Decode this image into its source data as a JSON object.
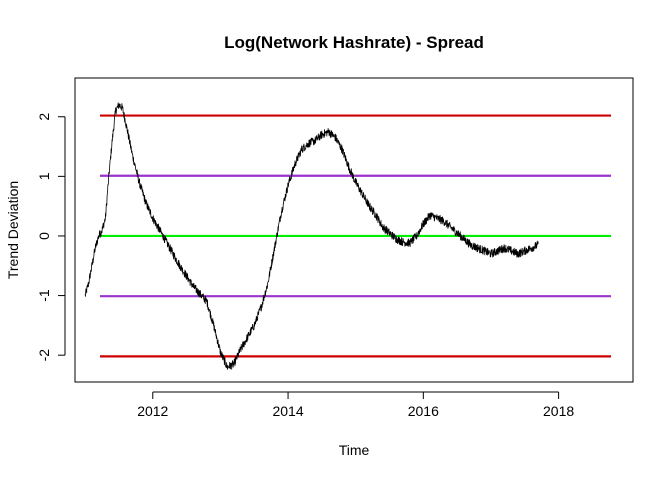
{
  "chart_data": {
    "type": "line",
    "title": "Log(Network Hashrate) - Spread",
    "xlabel": "Time",
    "ylabel": "Trend Deviation",
    "xlim": [
      2010.85,
      2019.1
    ],
    "ylim": [
      -2.45,
      2.65
    ],
    "x_ticks": [
      {
        "value": 2012,
        "label": "2012"
      },
      {
        "value": 2014,
        "label": "2014"
      },
      {
        "value": 2016,
        "label": "2016"
      },
      {
        "value": 2018,
        "label": "2018"
      }
    ],
    "y_ticks": [
      {
        "value": -2,
        "label": "-2"
      },
      {
        "value": -1,
        "label": "-1"
      },
      {
        "value": 0,
        "label": "0"
      },
      {
        "value": 1,
        "label": "1"
      },
      {
        "value": 2,
        "label": "2"
      }
    ],
    "grid": false,
    "legend": "none",
    "reference_lines": [
      {
        "y": 2.02,
        "color": "#cc0000"
      },
      {
        "y": 1.01,
        "color": "#9933cc"
      },
      {
        "y": 0.0,
        "color": "#00ee00"
      },
      {
        "y": -1.01,
        "color": "#9933cc"
      },
      {
        "y": -2.02,
        "color": "#cc0000"
      }
    ],
    "series": [
      {
        "color": "#000000",
        "noise": 0.07,
        "x": [
          2011.0,
          2011.05,
          2011.1,
          2011.15,
          2011.2,
          2011.25,
          2011.3,
          2011.35,
          2011.4,
          2011.45,
          2011.5,
          2011.55,
          2011.6,
          2011.7,
          2011.8,
          2011.9,
          2012.0,
          2012.2,
          2012.4,
          2012.6,
          2012.8,
          2012.9,
          2013.0,
          2013.1,
          2013.2,
          2013.3,
          2013.4,
          2013.5,
          2013.6,
          2013.7,
          2013.8,
          2013.9,
          2014.0,
          2014.1,
          2014.2,
          2014.3,
          2014.4,
          2014.5,
          2014.6,
          2014.7,
          2014.8,
          2014.9,
          2015.0,
          2015.1,
          2015.2,
          2015.3,
          2015.4,
          2015.5,
          2015.6,
          2015.7,
          2015.8,
          2015.9,
          2016.0,
          2016.1,
          2016.2,
          2016.3,
          2016.4,
          2016.5,
          2016.6,
          2016.7,
          2016.8,
          2016.9,
          2017.0,
          2017.1,
          2017.2,
          2017.3,
          2017.4,
          2017.5,
          2017.6,
          2017.7
        ],
        "y": [
          -1.0,
          -0.8,
          -0.5,
          -0.2,
          0.0,
          0.1,
          0.3,
          1.0,
          1.6,
          2.1,
          2.2,
          2.15,
          1.9,
          1.35,
          0.9,
          0.55,
          0.3,
          -0.1,
          -0.5,
          -0.85,
          -1.1,
          -1.5,
          -1.95,
          -2.2,
          -2.15,
          -1.9,
          -1.7,
          -1.5,
          -1.2,
          -0.8,
          -0.2,
          0.4,
          0.85,
          1.2,
          1.45,
          1.55,
          1.6,
          1.7,
          1.75,
          1.65,
          1.45,
          1.15,
          0.9,
          0.7,
          0.5,
          0.35,
          0.15,
          0.05,
          -0.05,
          -0.1,
          -0.12,
          0.0,
          0.2,
          0.35,
          0.3,
          0.25,
          0.15,
          0.05,
          -0.05,
          -0.15,
          -0.2,
          -0.25,
          -0.3,
          -0.25,
          -0.2,
          -0.25,
          -0.3,
          -0.25,
          -0.2,
          -0.15
        ]
      }
    ]
  }
}
